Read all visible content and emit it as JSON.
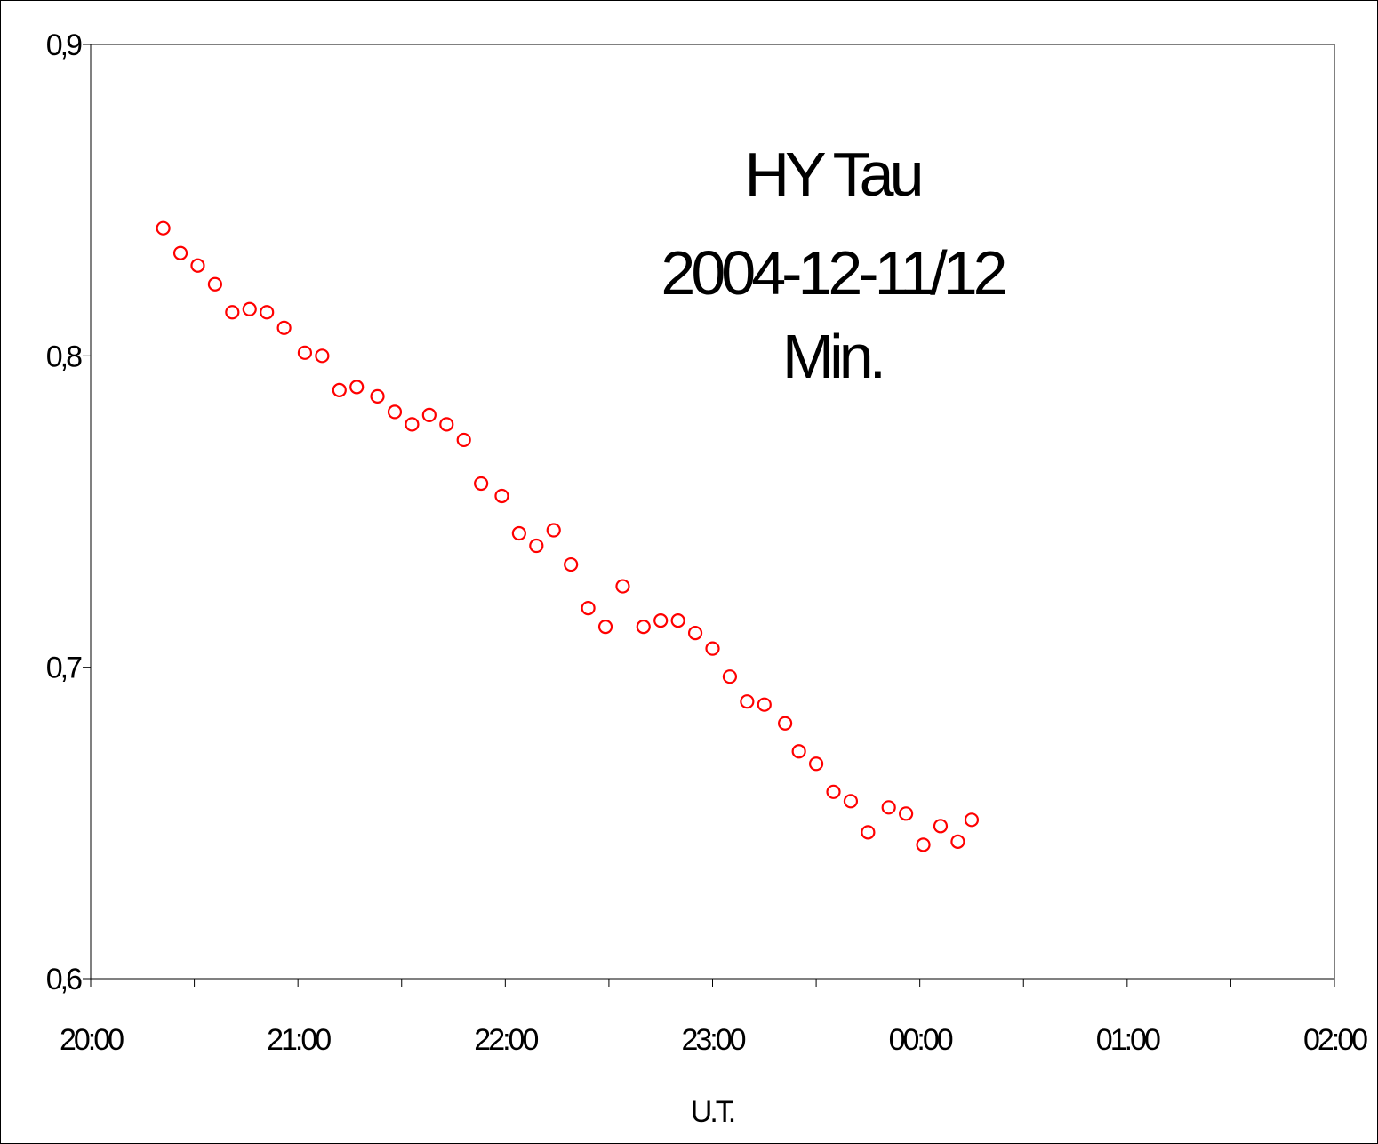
{
  "chart_data": {
    "type": "scatter",
    "title": "",
    "annotation_lines": [
      "HY Tau",
      "2004-12-11/12",
      "Min."
    ],
    "xlabel": "U.T.",
    "ylabel": "",
    "x_ticks": [
      "20:00",
      "21:00",
      "22:00",
      "23:00",
      "00:00",
      "01:00",
      "02:00"
    ],
    "y_ticks": [
      "0,6",
      "0,7",
      "0,8",
      "0,9"
    ],
    "xlim": [
      "20:00",
      "02:00"
    ],
    "ylim": [
      0.6,
      0.9
    ],
    "grid": false,
    "marker": "open circle",
    "marker_color": "#ff0000",
    "series": [
      {
        "x": [
          "20:21",
          "20:26",
          "20:31",
          "20:36",
          "20:41",
          "20:46",
          "20:51",
          "20:56",
          "21:02",
          "21:07",
          "21:12",
          "21:17",
          "21:23",
          "21:28",
          "21:33",
          "21:38",
          "21:43",
          "21:48",
          "21:53",
          "21:59",
          "22:04",
          "22:09",
          "22:14",
          "22:19",
          "22:24",
          "22:29",
          "22:34",
          "22:40",
          "22:45",
          "22:50",
          "22:55",
          "23:00",
          "23:05",
          "23:10",
          "23:15",
          "23:21",
          "23:25",
          "23:30",
          "23:35",
          "23:40",
          "23:45",
          "23:51",
          "23:56",
          "00:01",
          "00:06",
          "00:11",
          "00:15"
        ],
        "y": [
          0.841,
          0.833,
          0.829,
          0.823,
          0.814,
          0.815,
          0.814,
          0.809,
          0.801,
          0.8,
          0.789,
          0.79,
          0.787,
          0.782,
          0.778,
          0.781,
          0.778,
          0.773,
          0.759,
          0.755,
          0.743,
          0.739,
          0.744,
          0.733,
          0.719,
          0.713,
          0.726,
          0.713,
          0.715,
          0.715,
          0.711,
          0.706,
          0.697,
          0.689,
          0.688,
          0.682,
          0.673,
          0.669,
          0.66,
          0.657,
          0.647,
          0.655,
          0.653,
          0.643,
          0.649,
          0.644,
          0.651
        ]
      }
    ]
  }
}
